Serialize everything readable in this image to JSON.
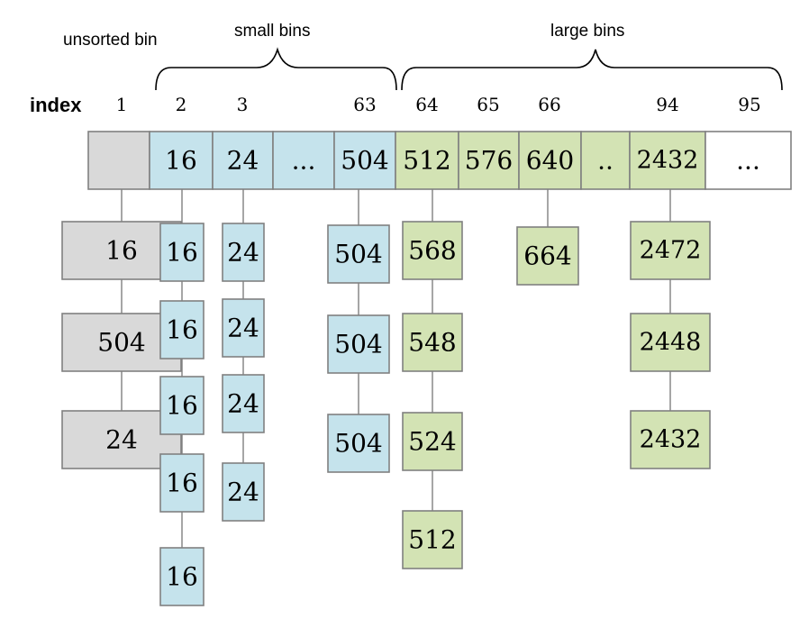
{
  "labels": {
    "unsorted_bin": "unsorted bin",
    "small_bins": "small bins",
    "large_bins": "large bins",
    "index": "index"
  },
  "colors": {
    "unsorted": "#d9d9d9",
    "small": "#c5e3ec",
    "large": "#d3e3b4",
    "empty": "#ffffff",
    "border": "#808080"
  },
  "bins": [
    {
      "index": "1",
      "label": "",
      "type": "unsorted",
      "chunks": [
        "16",
        "504",
        "24"
      ]
    },
    {
      "index": "2",
      "label": "16",
      "type": "small",
      "chunks": [
        "16",
        "16",
        "16",
        "16",
        "16"
      ]
    },
    {
      "index": "3",
      "label": "24",
      "type": "small",
      "chunks": [
        "24",
        "24",
        "24",
        "24"
      ]
    },
    {
      "index": "",
      "label": "...",
      "type": "small",
      "chunks": []
    },
    {
      "index": "63",
      "label": "504",
      "type": "small",
      "chunks": [
        "504",
        "504",
        "504"
      ]
    },
    {
      "index": "64",
      "label": "512",
      "type": "large",
      "chunks": [
        "568",
        "548",
        "524",
        "512"
      ]
    },
    {
      "index": "65",
      "label": "576",
      "type": "large",
      "chunks": []
    },
    {
      "index": "66",
      "label": "640",
      "type": "large",
      "chunks": [
        "664"
      ]
    },
    {
      "index": "",
      "label": "..",
      "type": "large",
      "chunks": []
    },
    {
      "index": "94",
      "label": "2432",
      "type": "large",
      "chunks": [
        "2472",
        "2448",
        "2432"
      ]
    },
    {
      "index": "95",
      "label": "...",
      "type": "empty",
      "chunks": []
    }
  ]
}
